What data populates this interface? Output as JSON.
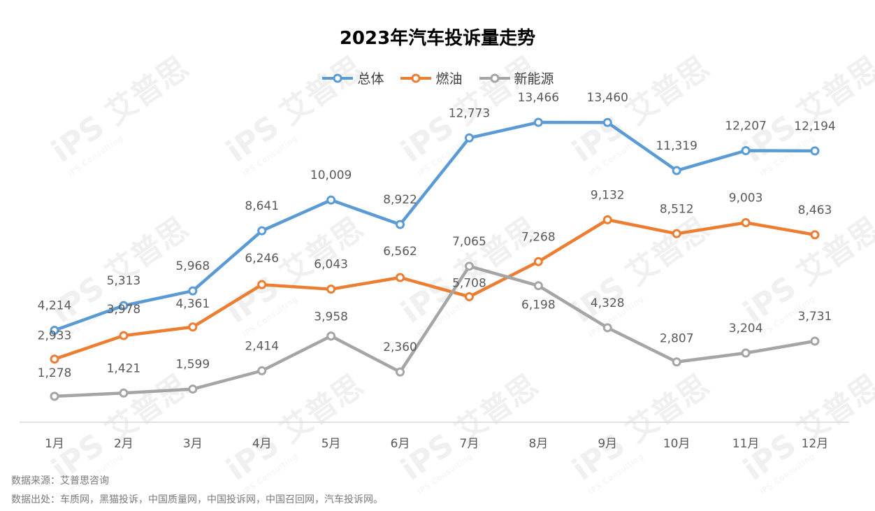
{
  "title": "2023年汽车投诉量走势",
  "watermark": {
    "logo": "iPS",
    "brand": "艾普思",
    "sub": "IPS Consulting"
  },
  "footer": {
    "source": "数据来源：艾普思咨询",
    "origin": "数据出处：车质网，黑猫投诉，中国质量网，中国投诉网，中国召回网，汽车投诉网。"
  },
  "chart_data": {
    "type": "line",
    "categories": [
      "1月",
      "2月",
      "3月",
      "4月",
      "5月",
      "6月",
      "7月",
      "8月",
      "9月",
      "10月",
      "11月",
      "12月"
    ],
    "ylim": [
      0,
      16000
    ],
    "grid": false,
    "legend_position": "top-center",
    "series": [
      {
        "name": "总体",
        "color": "#5B9BD5",
        "values": [
          4214,
          5313,
          5968,
          8641,
          10009,
          8922,
          12773,
          13466,
          13460,
          11319,
          12207,
          12194
        ]
      },
      {
        "name": "燃油",
        "color": "#ED7D31",
        "values": [
          2933,
          3978,
          4361,
          6246,
          6043,
          6562,
          5708,
          7268,
          9132,
          8512,
          9003,
          8463
        ]
      },
      {
        "name": "新能源",
        "color": "#A5A5A5",
        "values": [
          1278,
          1421,
          1599,
          2414,
          3958,
          2360,
          7065,
          6198,
          4328,
          2807,
          3204,
          3731
        ]
      }
    ]
  }
}
